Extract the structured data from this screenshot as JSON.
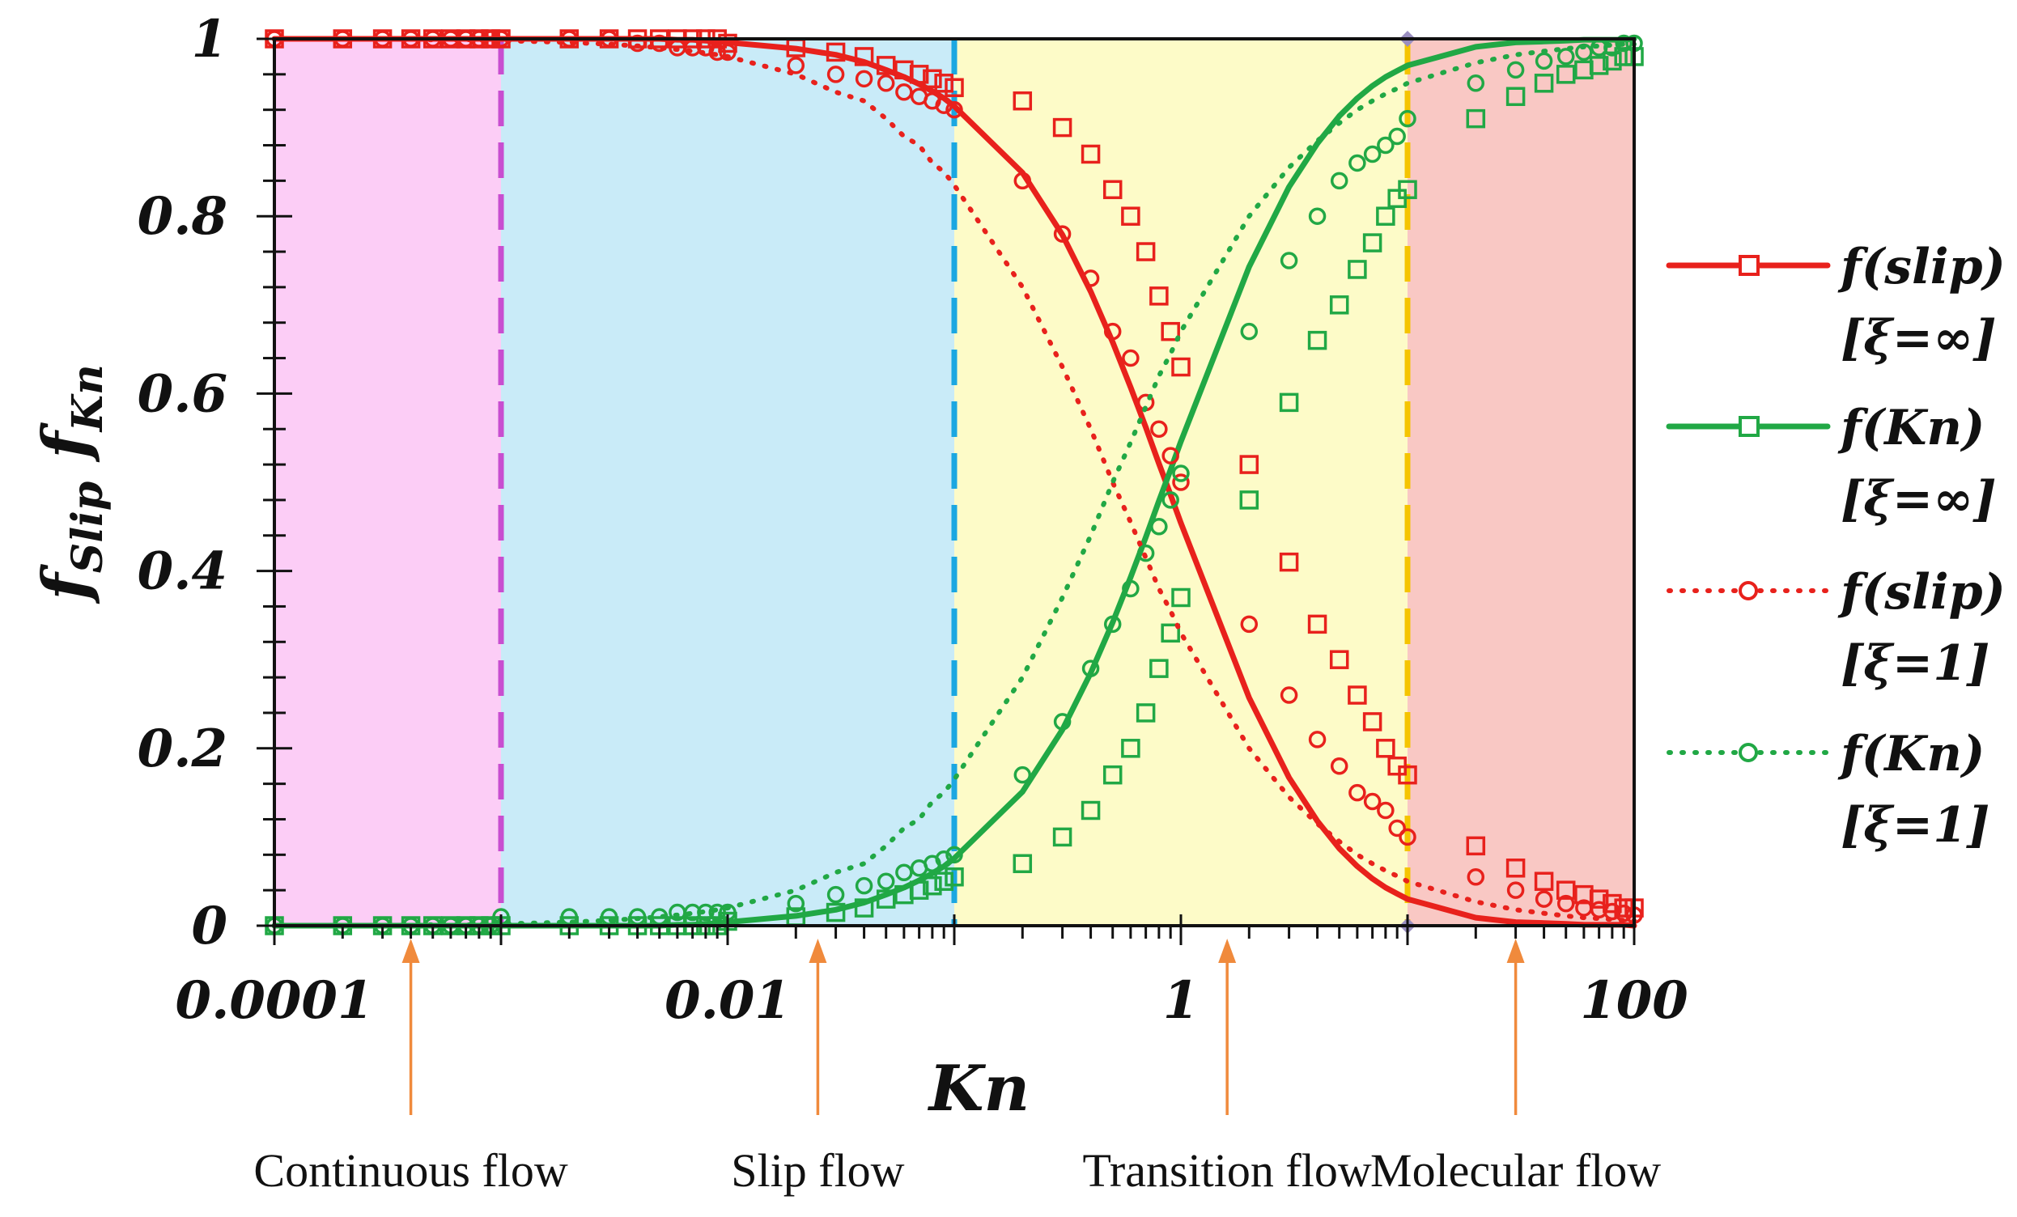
{
  "chart_data": {
    "type": "line",
    "xscale": "log10",
    "xlim": [
      0.0001,
      100
    ],
    "ylim": [
      0,
      1
    ],
    "xlabel": "Kn",
    "ylabel_main": "f",
    "ylabel_sub1": "Slip",
    "ylabel_sub2": "Kn",
    "x_tick_labels": [
      "0.0001",
      "0.01",
      "1",
      "100"
    ],
    "x_tick_values": [
      0.0001,
      0.01,
      1,
      100
    ],
    "y_tick_labels": [
      "0",
      "0.2",
      "0.4",
      "0.6",
      "0.8",
      "1"
    ],
    "y_tick_values": [
      0,
      0.2,
      0.4,
      0.6,
      0.8,
      1
    ],
    "regions": [
      {
        "name": "Continuous flow",
        "from": 0.0001,
        "to": 0.001,
        "fill": "#fccdf6",
        "boundary_color": "#c84ed0",
        "arrow_at": 0.0004
      },
      {
        "name": "Slip flow",
        "from": 0.001,
        "to": 0.1,
        "fill": "#c9ebf8",
        "boundary_color": "#1ba7e1",
        "arrow_at": 0.025
      },
      {
        "name": "Transition flow",
        "from": 0.1,
        "to": 10,
        "fill": "#fdfbc8",
        "boundary_color": "#f5c400",
        "arrow_at": 1.6
      },
      {
        "name": "Molecular flow",
        "from": 10,
        "to": 100,
        "fill": "#f9c8c4",
        "boundary_color": null,
        "arrow_at": 30
      }
    ],
    "series": [
      {
        "name": "f(slip)",
        "param": "[ξ=∞]",
        "color": "#e8211c",
        "line": "solid",
        "marker": "square",
        "x": [
          0.0001,
          0.0002,
          0.0003,
          0.0004,
          0.0005,
          0.0006,
          0.0007,
          0.0008,
          0.0009,
          0.001,
          0.002,
          0.003,
          0.004,
          0.005,
          0.006,
          0.007,
          0.008,
          0.009,
          0.01,
          0.02,
          0.03,
          0.04,
          0.05,
          0.06,
          0.07,
          0.08,
          0.09,
          0.1,
          0.2,
          0.3,
          0.4,
          0.5,
          0.6,
          0.7,
          0.8,
          0.9,
          1,
          2,
          3,
          4,
          5,
          6,
          7,
          8,
          9,
          10,
          20,
          30,
          40,
          50,
          60,
          70,
          80,
          90,
          100
        ],
        "y": [
          1.0,
          1.0,
          1.0,
          1.0,
          1.0,
          1.0,
          1.0,
          1.0,
          1.0,
          1.0,
          1.0,
          1.0,
          1.0,
          1.0,
          0.999,
          0.999,
          0.998,
          0.997,
          0.996,
          0.989,
          0.982,
          0.974,
          0.965,
          0.957,
          0.949,
          0.941,
          0.933,
          0.924,
          0.849,
          0.779,
          0.715,
          0.658,
          0.607,
          0.562,
          0.521,
          0.486,
          0.454,
          0.257,
          0.167,
          0.118,
          0.087,
          0.067,
          0.053,
          0.043,
          0.036,
          0.03,
          0.009,
          0.004,
          0.003,
          0.002,
          0.001,
          0.001,
          0.001,
          0.001,
          0.0
        ],
        "marker_x": [
          0.0001,
          0.0002,
          0.0003,
          0.0004,
          0.0005,
          0.0006,
          0.0007,
          0.0008,
          0.0009,
          0.001,
          0.002,
          0.003,
          0.004,
          0.005,
          0.006,
          0.007,
          0.008,
          0.009,
          0.01,
          0.02,
          0.03,
          0.04,
          0.05,
          0.06,
          0.07,
          0.08,
          0.09,
          0.1,
          0.2,
          0.3,
          0.4,
          0.5,
          0.6,
          0.7,
          0.8,
          0.9,
          1,
          2,
          3,
          4,
          5,
          6,
          7,
          8,
          9,
          10,
          20,
          30,
          40,
          50,
          60,
          70,
          80,
          90,
          100
        ],
        "marker_y": [
          1.0,
          1.0,
          1.0,
          1.0,
          1.0,
          1.0,
          1.0,
          1.0,
          1.0,
          1.0,
          1.0,
          1.0,
          1.0,
          1.0,
          1.0,
          1.0,
          1.0,
          1.0,
          0.995,
          0.99,
          0.985,
          0.98,
          0.97,
          0.965,
          0.96,
          0.955,
          0.95,
          0.945,
          0.93,
          0.9,
          0.87,
          0.83,
          0.8,
          0.76,
          0.71,
          0.67,
          0.63,
          0.52,
          0.41,
          0.34,
          0.3,
          0.26,
          0.23,
          0.2,
          0.18,
          0.17,
          0.09,
          0.065,
          0.05,
          0.04,
          0.035,
          0.03,
          0.025,
          0.02,
          0.02
        ]
      },
      {
        "name": "f(Kn)",
        "param": "[ξ=∞]",
        "color": "#21a845",
        "line": "solid",
        "marker": "square",
        "x": [
          0.0001,
          0.0002,
          0.0003,
          0.0004,
          0.0005,
          0.0006,
          0.0007,
          0.0008,
          0.0009,
          0.001,
          0.002,
          0.003,
          0.004,
          0.005,
          0.006,
          0.007,
          0.008,
          0.009,
          0.01,
          0.02,
          0.03,
          0.04,
          0.05,
          0.06,
          0.07,
          0.08,
          0.09,
          0.1,
          0.2,
          0.3,
          0.4,
          0.5,
          0.6,
          0.7,
          0.8,
          0.9,
          1,
          2,
          3,
          4,
          5,
          6,
          7,
          8,
          9,
          10,
          20,
          30,
          40,
          50,
          60,
          70,
          80,
          90,
          100
        ],
        "y": [
          0.0,
          0.0,
          0.0,
          0.0,
          0.0,
          0.0,
          0.0,
          0.0,
          0.0,
          0.0,
          0.0,
          0.0,
          0.0,
          0.0,
          0.001,
          0.001,
          0.002,
          0.003,
          0.004,
          0.011,
          0.018,
          0.026,
          0.035,
          0.043,
          0.051,
          0.059,
          0.067,
          0.076,
          0.151,
          0.221,
          0.285,
          0.342,
          0.393,
          0.438,
          0.479,
          0.514,
          0.546,
          0.743,
          0.833,
          0.882,
          0.913,
          0.933,
          0.947,
          0.957,
          0.964,
          0.97,
          0.991,
          0.996,
          0.997,
          0.998,
          0.999,
          0.999,
          0.999,
          0.999,
          1.0
        ],
        "marker_x": [
          0.0001,
          0.0002,
          0.0003,
          0.0004,
          0.0005,
          0.0006,
          0.0007,
          0.0008,
          0.0009,
          0.001,
          0.002,
          0.003,
          0.004,
          0.005,
          0.006,
          0.007,
          0.008,
          0.009,
          0.01,
          0.02,
          0.03,
          0.04,
          0.05,
          0.06,
          0.07,
          0.08,
          0.09,
          0.1,
          0.2,
          0.3,
          0.4,
          0.5,
          0.6,
          0.7,
          0.8,
          0.9,
          1,
          2,
          3,
          4,
          5,
          6,
          7,
          8,
          9,
          10,
          20,
          30,
          40,
          50,
          60,
          70,
          80,
          90,
          100
        ],
        "marker_y": [
          0.0,
          0.0,
          0.0,
          0.0,
          0.0,
          0.0,
          0.0,
          0.0,
          0.0,
          0.0,
          0.0,
          0.0,
          0.0,
          0.0,
          0.0,
          0.0,
          0.0,
          0.0,
          0.005,
          0.01,
          0.015,
          0.02,
          0.03,
          0.035,
          0.04,
          0.045,
          0.05,
          0.055,
          0.07,
          0.1,
          0.13,
          0.17,
          0.2,
          0.24,
          0.29,
          0.33,
          0.37,
          0.48,
          0.59,
          0.66,
          0.7,
          0.74,
          0.77,
          0.8,
          0.82,
          0.83,
          0.91,
          0.935,
          0.95,
          0.96,
          0.965,
          0.97,
          0.975,
          0.98,
          0.98
        ]
      },
      {
        "name": "f(slip)",
        "param": "[ξ=1]",
        "color": "#e8211c",
        "line": "dotted",
        "marker": "circle",
        "x": [
          0.0001,
          0.0002,
          0.0003,
          0.0004,
          0.0005,
          0.0006,
          0.0007,
          0.0008,
          0.0009,
          0.001,
          0.002,
          0.003,
          0.004,
          0.005,
          0.006,
          0.007,
          0.008,
          0.009,
          0.01,
          0.02,
          0.03,
          0.04,
          0.05,
          0.06,
          0.07,
          0.08,
          0.09,
          0.1,
          0.2,
          0.3,
          0.4,
          0.5,
          0.6,
          0.7,
          0.8,
          0.9,
          1,
          2,
          3,
          4,
          5,
          6,
          7,
          8,
          9,
          10,
          20,
          30,
          40,
          50,
          60,
          70,
          80,
          90,
          100
        ],
        "y": [
          1.0,
          1.0,
          1.0,
          0.999,
          0.999,
          0.999,
          0.999,
          0.999,
          0.998,
          0.998,
          0.996,
          0.994,
          0.992,
          0.99,
          0.988,
          0.986,
          0.984,
          0.982,
          0.98,
          0.96,
          0.94,
          0.93,
          0.91,
          0.89,
          0.88,
          0.86,
          0.85,
          0.835,
          0.72,
          0.63,
          0.56,
          0.5,
          0.455,
          0.415,
          0.38,
          0.355,
          0.33,
          0.2,
          0.145,
          0.115,
          0.095,
          0.08,
          0.07,
          0.062,
          0.056,
          0.05,
          0.027,
          0.018,
          0.014,
          0.011,
          0.009,
          0.008,
          0.007,
          0.006,
          0.006
        ],
        "marker_x": [
          0.0001,
          0.0002,
          0.0003,
          0.0004,
          0.0005,
          0.0006,
          0.0007,
          0.0008,
          0.0009,
          0.001,
          0.002,
          0.003,
          0.004,
          0.005,
          0.006,
          0.007,
          0.008,
          0.009,
          0.01,
          0.02,
          0.03,
          0.04,
          0.05,
          0.06,
          0.07,
          0.08,
          0.09,
          0.1,
          0.2,
          0.3,
          0.4,
          0.5,
          0.6,
          0.7,
          0.8,
          0.9,
          1,
          2,
          3,
          4,
          5,
          6,
          7,
          8,
          9,
          10,
          20,
          30,
          40,
          50,
          60,
          70,
          80,
          90,
          100
        ],
        "marker_y": [
          1.0,
          1.0,
          1.0,
          1.0,
          1.0,
          1.0,
          1.0,
          1.0,
          1.0,
          1.0,
          1.0,
          1.0,
          0.995,
          0.995,
          0.99,
          0.99,
          0.99,
          0.985,
          0.985,
          0.97,
          0.96,
          0.955,
          0.95,
          0.94,
          0.935,
          0.93,
          0.925,
          0.92,
          0.84,
          0.78,
          0.73,
          0.67,
          0.64,
          0.59,
          0.56,
          0.53,
          0.5,
          0.34,
          0.26,
          0.21,
          0.18,
          0.15,
          0.14,
          0.13,
          0.11,
          0.1,
          0.055,
          0.04,
          0.03,
          0.025,
          0.02,
          0.018,
          0.016,
          0.014,
          0.012
        ]
      },
      {
        "name": "f(Kn)",
        "param": "[ξ=1]",
        "color": "#21a845",
        "line": "dotted",
        "marker": "circle",
        "x": [
          0.0001,
          0.0002,
          0.0003,
          0.0004,
          0.0005,
          0.0006,
          0.0007,
          0.0008,
          0.0009,
          0.001,
          0.002,
          0.003,
          0.004,
          0.005,
          0.006,
          0.007,
          0.008,
          0.009,
          0.01,
          0.02,
          0.03,
          0.04,
          0.05,
          0.06,
          0.07,
          0.08,
          0.09,
          0.1,
          0.2,
          0.3,
          0.4,
          0.5,
          0.6,
          0.7,
          0.8,
          0.9,
          1,
          2,
          3,
          4,
          5,
          6,
          7,
          8,
          9,
          10,
          20,
          30,
          40,
          50,
          60,
          70,
          80,
          90,
          100
        ],
        "y": [
          0.0,
          0.0,
          0.0,
          0.001,
          0.001,
          0.001,
          0.001,
          0.001,
          0.002,
          0.002,
          0.004,
          0.006,
          0.008,
          0.01,
          0.012,
          0.014,
          0.016,
          0.018,
          0.02,
          0.04,
          0.06,
          0.07,
          0.09,
          0.11,
          0.12,
          0.14,
          0.15,
          0.165,
          0.28,
          0.37,
          0.44,
          0.5,
          0.545,
          0.585,
          0.62,
          0.645,
          0.67,
          0.8,
          0.855,
          0.885,
          0.905,
          0.92,
          0.93,
          0.938,
          0.944,
          0.95,
          0.973,
          0.982,
          0.986,
          0.989,
          0.991,
          0.992,
          0.993,
          0.994,
          0.994
        ],
        "marker_x": [
          0.0001,
          0.0002,
          0.0003,
          0.0004,
          0.0005,
          0.0006,
          0.0007,
          0.0008,
          0.0009,
          0.001,
          0.002,
          0.003,
          0.004,
          0.005,
          0.006,
          0.007,
          0.008,
          0.009,
          0.01,
          0.02,
          0.03,
          0.04,
          0.05,
          0.06,
          0.07,
          0.08,
          0.09,
          0.1,
          0.2,
          0.3,
          0.4,
          0.5,
          0.6,
          0.7,
          0.8,
          0.9,
          1,
          2,
          3,
          4,
          5,
          6,
          7,
          8,
          9,
          10,
          20,
          30,
          40,
          50,
          60,
          70,
          80,
          90,
          100
        ],
        "marker_y": [
          0.0,
          0.0,
          0.0,
          0.0,
          0.0,
          0.0,
          0.0,
          0.0,
          0.0,
          0.01,
          0.01,
          0.01,
          0.01,
          0.01,
          0.015,
          0.015,
          0.015,
          0.015,
          0.015,
          0.025,
          0.035,
          0.045,
          0.05,
          0.06,
          0.065,
          0.07,
          0.075,
          0.08,
          0.17,
          0.23,
          0.29,
          0.34,
          0.38,
          0.42,
          0.45,
          0.48,
          0.51,
          0.67,
          0.75,
          0.8,
          0.84,
          0.86,
          0.87,
          0.88,
          0.89,
          0.91,
          0.95,
          0.965,
          0.975,
          0.98,
          0.985,
          0.99,
          0.99,
          0.995,
          0.995
        ]
      }
    ]
  }
}
